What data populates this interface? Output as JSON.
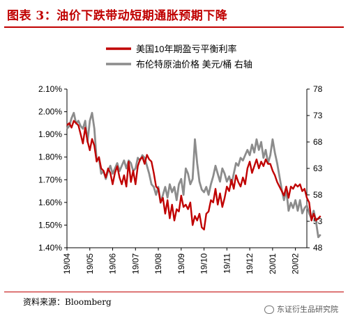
{
  "title": "图表 3：油价下跌带动短期通胀预期下降",
  "source": "资料来源：Bloomberg",
  "watermark": "东证衍生品研究院",
  "colors": {
    "series1": "#c00000",
    "series2": "#8c8c8c",
    "title": "#c00000"
  },
  "chart_data": {
    "type": "line",
    "x_ticks": [
      "19/04",
      "19/05",
      "19/06",
      "19/07",
      "19/08",
      "19/09",
      "19/10",
      "19/11",
      "19/12",
      "20/01",
      "20/02"
    ],
    "ylim_left": [
      0.014,
      0.021
    ],
    "yticks_left": [
      "1.40%",
      "1.50%",
      "1.60%",
      "1.70%",
      "1.80%",
      "1.90%",
      "2.00%",
      "2.10%"
    ],
    "ylim_right": [
      48,
      78
    ],
    "yticks_right": [
      "48",
      "53",
      "58",
      "63",
      "68",
      "73",
      "78"
    ],
    "legend_position": "top",
    "series": [
      {
        "name": "美国10年期盈亏平衡利率",
        "axis": "left",
        "x": [
          0,
          0.1,
          0.2,
          0.3,
          0.4,
          0.5,
          0.6,
          0.7,
          0.8,
          0.9,
          1.0,
          1.1,
          1.2,
          1.3,
          1.4,
          1.5,
          1.6,
          1.7,
          1.8,
          1.9,
          2.0,
          2.1,
          2.2,
          2.3,
          2.4,
          2.5,
          2.6,
          2.7,
          2.8,
          2.9,
          3.0,
          3.1,
          3.2,
          3.3,
          3.4,
          3.5,
          3.6,
          3.7,
          3.8,
          3.9,
          4.0,
          4.1,
          4.2,
          4.3,
          4.4,
          4.5,
          4.6,
          4.7,
          4.8,
          4.9,
          5.0,
          5.1,
          5.2,
          5.3,
          5.4,
          5.5,
          5.6,
          5.7,
          5.8,
          5.9,
          6.0,
          6.1,
          6.2,
          6.3,
          6.4,
          6.5,
          6.6,
          6.7,
          6.8,
          6.9,
          7.0,
          7.1,
          7.2,
          7.3,
          7.4,
          7.5,
          7.6,
          7.7,
          7.8,
          7.9,
          8.0,
          8.1,
          8.2,
          8.3,
          8.4,
          8.5,
          8.6,
          8.7,
          8.8,
          8.9,
          9.0,
          9.1,
          9.2,
          9.3,
          9.4,
          9.5,
          9.6,
          9.7,
          9.8,
          9.9,
          10.0,
          10.1,
          10.2,
          10.3,
          10.4,
          10.5,
          10.6,
          10.7,
          10.8,
          10.9,
          11.0,
          11.1
        ],
        "values": [
          0.0194,
          0.0195,
          0.0193,
          0.0196,
          0.0195,
          0.0194,
          0.019,
          0.0186,
          0.0193,
          0.0187,
          0.0183,
          0.0188,
          0.0185,
          0.0178,
          0.018,
          0.0175,
          0.0174,
          0.0171,
          0.0175,
          0.0173,
          0.0168,
          0.0173,
          0.0176,
          0.0171,
          0.0168,
          0.0172,
          0.0167,
          0.0178,
          0.0169,
          0.0174,
          0.0168,
          0.0176,
          0.0179,
          0.018,
          0.0177,
          0.0181,
          0.0179,
          0.0178,
          0.0173,
          0.0167,
          0.0166,
          0.016,
          0.0162,
          0.0155,
          0.0161,
          0.0153,
          0.0159,
          0.0152,
          0.0157,
          0.0156,
          0.0163,
          0.0158,
          0.0159,
          0.0157,
          0.016,
          0.015,
          0.0154,
          0.0152,
          0.0155,
          0.0149,
          0.0148,
          0.0155,
          0.0156,
          0.0161,
          0.016,
          0.0166,
          0.0159,
          0.0164,
          0.0158,
          0.0162,
          0.0167,
          0.0165,
          0.017,
          0.0166,
          0.0172,
          0.0169,
          0.0167,
          0.0171,
          0.0168,
          0.0175,
          0.0178,
          0.0173,
          0.0176,
          0.0179,
          0.0175,
          0.0178,
          0.0176,
          0.0179,
          0.0177,
          0.0177,
          0.0174,
          0.0172,
          0.0169,
          0.0167,
          0.0165,
          0.0163,
          0.0167,
          0.0162,
          0.0167,
          0.0166,
          0.0168,
          0.0167,
          0.0168,
          0.0165,
          0.0166,
          0.0162,
          0.016,
          0.0152,
          0.0155,
          0.0152,
          0.0153,
          0.0154
        ]
      },
      {
        "name": "布伦特原油价格 美元/桶 右轴",
        "axis": "right",
        "x": [
          0,
          0.1,
          0.2,
          0.3,
          0.4,
          0.5,
          0.6,
          0.7,
          0.8,
          0.9,
          1.0,
          1.1,
          1.2,
          1.3,
          1.4,
          1.5,
          1.6,
          1.7,
          1.8,
          1.9,
          2.0,
          2.1,
          2.2,
          2.3,
          2.4,
          2.5,
          2.6,
          2.7,
          2.8,
          2.9,
          3.0,
          3.1,
          3.2,
          3.3,
          3.4,
          3.5,
          3.6,
          3.7,
          3.8,
          3.9,
          4.0,
          4.1,
          4.2,
          4.3,
          4.4,
          4.5,
          4.6,
          4.7,
          4.8,
          4.9,
          5.0,
          5.1,
          5.2,
          5.3,
          5.4,
          5.5,
          5.6,
          5.7,
          5.8,
          5.9,
          6.0,
          6.1,
          6.2,
          6.3,
          6.4,
          6.5,
          6.6,
          6.7,
          6.8,
          6.9,
          7.0,
          7.1,
          7.2,
          7.3,
          7.4,
          7.5,
          7.6,
          7.7,
          7.8,
          7.9,
          8.0,
          8.1,
          8.2,
          8.3,
          8.4,
          8.5,
          8.6,
          8.7,
          8.8,
          8.9,
          9.0,
          9.1,
          9.2,
          9.3,
          9.4,
          9.5,
          9.6,
          9.7,
          9.8,
          9.9,
          10.0,
          10.1,
          10.2,
          10.3,
          10.4,
          10.5,
          10.6,
          10.7,
          10.8,
          10.9,
          11.0,
          11.1
        ],
        "values": [
          70.5,
          71.0,
          72.5,
          73.5,
          71.5,
          72.0,
          71.0,
          70.5,
          72.0,
          68.0,
          72.0,
          73.5,
          70.5,
          64.5,
          65.0,
          62.0,
          62.5,
          61.0,
          62.5,
          63.5,
          62.0,
          63.0,
          64.0,
          62.5,
          63.5,
          64.5,
          63.0,
          64.5,
          64.0,
          62.5,
          63.0,
          65.0,
          64.5,
          65.5,
          65.0,
          63.5,
          62.0,
          60.0,
          59.5,
          58.0,
          59.5,
          56.5,
          58.0,
          59.5,
          57.5,
          60.0,
          58.5,
          59.5,
          57.0,
          60.0,
          61.0,
          58.0,
          63.0,
          62.0,
          60.0,
          61.0,
          68.5,
          64.0,
          60.5,
          59.0,
          58.5,
          59.5,
          58.0,
          60.0,
          61.5,
          63.5,
          62.0,
          60.5,
          63.0,
          62.0,
          60.5,
          61.5,
          60.0,
          62.0,
          64.0,
          63.5,
          65.0,
          64.5,
          65.5,
          66.5,
          65.5,
          67.5,
          66.0,
          68.5,
          66.5,
          68.0,
          65.0,
          66.5,
          64.0,
          65.5,
          68.5,
          66.0,
          64.0,
          61.5,
          59.0,
          57.0,
          59.0,
          55.0,
          56.5,
          55.5,
          57.0,
          55.0,
          57.0,
          54.5,
          55.5,
          56.0,
          54.5,
          53.5,
          55.0,
          53.0,
          50.0,
          50.5
        ]
      }
    ]
  }
}
